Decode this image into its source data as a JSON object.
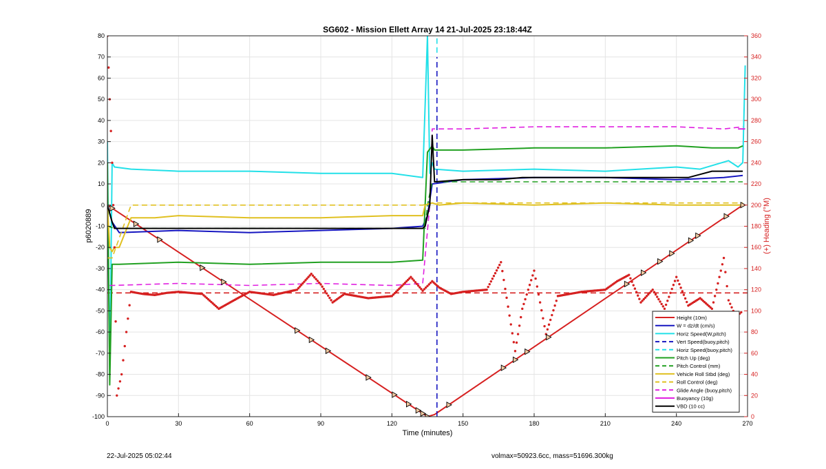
{
  "chart_data": {
    "type": "line",
    "title": "SG602 - Mission Ellett Array 14 21-Jul-2025 23:18:44Z",
    "xlabel": "Time (minutes)",
    "ylabel_left": "p6020889",
    "ylabel_right": "(+) Heading (°M)",
    "xlim": [
      0,
      270
    ],
    "ylim_left": [
      -100,
      80
    ],
    "ylim_right": [
      0,
      360
    ],
    "x_ticks": [
      "0",
      "30",
      "60",
      "90",
      "120",
      "150",
      "180",
      "210",
      "240",
      "270"
    ],
    "y_ticks_left": [
      "80",
      "70",
      "60",
      "50",
      "40",
      "30",
      "20",
      "10",
      "0",
      "-10",
      "-20",
      "-30",
      "-40",
      "-50",
      "-60",
      "-70",
      "-80",
      "-90",
      "-100"
    ],
    "y_ticks_right": [
      "360",
      "340",
      "320",
      "300",
      "280",
      "260",
      "240",
      "220",
      "200",
      "180",
      "160",
      "140",
      "120",
      "100",
      "80",
      "60",
      "40",
      "20",
      "0"
    ],
    "grid": true,
    "legend_position": "bottom-right",
    "series": [
      {
        "name": "Height (10m)",
        "color": "#d62020",
        "style": "solid",
        "x": [
          0,
          135,
          138,
          268
        ],
        "y": [
          0,
          -100,
          -99,
          0
        ]
      },
      {
        "name": "W = dz/dt (cm/s)",
        "color": "#1515c0",
        "style": "solid",
        "x": [
          0,
          2,
          5,
          30,
          60,
          90,
          120,
          133,
          135,
          137,
          150,
          180,
          210,
          240,
          260,
          268
        ],
        "y": [
          0,
          -8,
          -13,
          -12,
          -13,
          -12,
          -11,
          -10,
          -5,
          10,
          12,
          13,
          13,
          12,
          13,
          14
        ]
      },
      {
        "name": "Horiz Speed(W,pitch)",
        "color": "#22e0e8",
        "style": "solid",
        "x": [
          0,
          1,
          2,
          3,
          10,
          30,
          60,
          90,
          120,
          133,
          135,
          136,
          137,
          138,
          150,
          180,
          210,
          240,
          250,
          262,
          266,
          268,
          269
        ],
        "y": [
          30,
          -80,
          20,
          18,
          17,
          16,
          16,
          15,
          15,
          13,
          80,
          15,
          20,
          17,
          16,
          17,
          16,
          18,
          17,
          21,
          18,
          20,
          66
        ]
      },
      {
        "name": "Vert Speed(buoy,pitch)",
        "color": "#1515c0",
        "style": "dashed",
        "x": [
          139,
          139
        ],
        "y": [
          -100,
          70
        ]
      },
      {
        "name": "Horiz Speed(buoy,pitch)",
        "color": "#22e0e8",
        "style": "dashed",
        "x": [
          139,
          139
        ],
        "y": [
          72,
          80
        ]
      },
      {
        "name": "Pitch Up (deg)",
        "color": "#20a020",
        "style": "solid",
        "x": [
          0,
          1,
          2,
          5,
          30,
          60,
          90,
          120,
          133,
          135,
          137,
          138,
          150,
          180,
          210,
          240,
          255,
          266,
          268
        ],
        "y": [
          20,
          -85,
          -28,
          -28,
          -27,
          -28,
          -27,
          -27,
          -26,
          25,
          28,
          26,
          26,
          27,
          27,
          28,
          27,
          27,
          28
        ]
      },
      {
        "name": "Pitch Control (mm)",
        "color": "#20a020",
        "style": "dashed",
        "x": [
          0,
          3,
          134,
          135,
          137,
          268
        ],
        "y": [
          -10,
          -11,
          -11,
          0,
          11,
          11
        ]
      },
      {
        "name": "Vehicle Roll Stbd (deg)",
        "color": "#e0c020",
        "style": "solid",
        "x": [
          0,
          1,
          2,
          3,
          5,
          10,
          20,
          30,
          60,
          90,
          120,
          133,
          134,
          137,
          140,
          150,
          180,
          210,
          240,
          260,
          268
        ],
        "y": [
          0,
          -20,
          -22,
          -20,
          -20,
          -6,
          -6,
          -5,
          -6,
          -6,
          -5,
          -5,
          0,
          1,
          0,
          1,
          0,
          1,
          0,
          0,
          0
        ]
      },
      {
        "name": "Roll Control (deg)",
        "color": "#e0c020",
        "style": "dashed",
        "x": [
          0,
          2,
          10,
          133,
          137,
          268
        ],
        "y": [
          -25,
          -25,
          0,
          0,
          1,
          1
        ]
      },
      {
        "name": "Glide Angle (buoy,pitch)",
        "color": "#e020e0",
        "style": "dashed",
        "x": [
          1,
          2,
          30,
          60,
          90,
          120,
          133,
          136,
          137,
          150,
          180,
          210,
          240,
          260,
          268
        ],
        "y": [
          -38,
          -38,
          -37,
          -38,
          -37,
          -38,
          -37,
          0,
          36,
          36,
          37,
          37,
          37,
          36,
          37
        ]
      },
      {
        "name": "Buoyancy (10g)",
        "color": "#e020e0",
        "style": "solid",
        "x": [
          266,
          269
        ],
        "y": [
          36,
          36
        ]
      },
      {
        "name": "VBD (10 cc)",
        "color": "#000000",
        "style": "solid",
        "x": [
          0,
          2,
          3,
          133,
          134,
          136,
          137,
          138,
          150,
          165,
          175,
          185,
          215,
          245,
          255,
          262,
          268
        ],
        "y": [
          0,
          -8,
          -11,
          -11,
          -10,
          0,
          33,
          11,
          12,
          12,
          13,
          13,
          13,
          13,
          16,
          16,
          16
        ]
      }
    ],
    "heading_series": {
      "axis": "right",
      "color": "#d62020",
      "marker": "dot",
      "x": [
        0,
        1,
        2,
        3,
        4,
        6,
        8,
        10,
        15,
        20,
        25,
        30,
        40,
        47,
        55,
        60,
        70,
        80,
        86,
        90,
        95,
        100,
        110,
        120,
        128,
        133,
        137,
        140,
        145,
        150,
        160,
        166,
        172,
        175,
        180,
        185,
        190,
        200,
        210,
        215,
        220,
        225,
        230,
        235,
        240,
        245,
        250,
        255,
        260,
        262,
        264,
        266,
        268
      ],
      "y": [
        360,
        300,
        240,
        160,
        20,
        40,
        80,
        118,
        116,
        115,
        117,
        118,
        116,
        102,
        112,
        118,
        115,
        120,
        135,
        125,
        108,
        116,
        112,
        114,
        132,
        119,
        128,
        122,
        116,
        118,
        120,
        146,
        62,
        102,
        138,
        78,
        114,
        118,
        120,
        128,
        134,
        108,
        120,
        102,
        132,
        105,
        112,
        102,
        150,
        110,
        100,
        96,
        100
      ]
    },
    "heading_reference": {
      "axis": "right",
      "value": 117,
      "color": "#d62020",
      "style": "dashed"
    },
    "dive_markers": {
      "x": [
        2,
        12,
        22,
        40,
        49,
        80,
        86,
        93,
        110,
        121,
        127,
        131,
        133,
        135,
        144,
        167,
        172,
        177,
        186,
        219,
        226,
        233,
        238,
        246,
        249,
        261,
        268
      ]
    }
  },
  "footer": {
    "timestamp": "22-Jul-2025 05:02:44",
    "summary": "volmax=50923.6cc, mass=51696.300kg"
  }
}
